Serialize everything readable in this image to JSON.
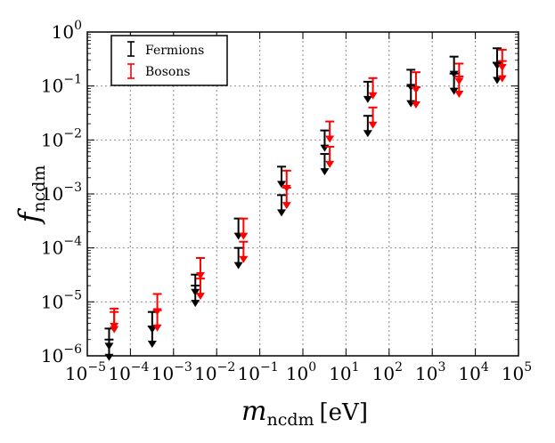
{
  "chart_data": {
    "type": "scatter",
    "title": "",
    "x_scale": "log",
    "y_scale": "log",
    "xlim": [
      1e-05,
      100000.0
    ],
    "ylim": [
      1e-06,
      1
    ],
    "grid": true,
    "xlabel": {
      "main": "m",
      "sub": "ncdm",
      "unit": "[eV]"
    },
    "ylabel": {
      "main": "f",
      "sub": "ncdm"
    },
    "x_tick_labels": [
      {
        "base": "10",
        "exp": "−5"
      },
      {
        "base": "10",
        "exp": "−4"
      },
      {
        "base": "10",
        "exp": "−3"
      },
      {
        "base": "10",
        "exp": "−2"
      },
      {
        "base": "10",
        "exp": "−1"
      },
      {
        "base": "10",
        "exp": "0"
      },
      {
        "base": "10",
        "exp": "1"
      },
      {
        "base": "10",
        "exp": "2"
      },
      {
        "base": "10",
        "exp": "3"
      },
      {
        "base": "10",
        "exp": "4"
      },
      {
        "base": "10",
        "exp": "5"
      }
    ],
    "y_tick_labels": [
      {
        "base": "10",
        "exp": "−6"
      },
      {
        "base": "10",
        "exp": "−5"
      },
      {
        "base": "10",
        "exp": "−4"
      },
      {
        "base": "10",
        "exp": "−3"
      },
      {
        "base": "10",
        "exp": "−2"
      },
      {
        "base": "10",
        "exp": "−1"
      },
      {
        "base": "10",
        "exp": "0"
      }
    ],
    "legend": {
      "position": "top-left",
      "entries": [
        "Fermions",
        "Bosons"
      ]
    },
    "series": [
      {
        "name": "Fermions",
        "color": "#000000",
        "marker": "upper-limit-arrow",
        "points": [
          {
            "x": 3.2e-05,
            "upper_limits": [
              3.2e-06,
              2e-06
            ]
          },
          {
            "x": 0.00032,
            "upper_limits": [
              6.5e-06,
              3.5e-06
            ]
          },
          {
            "x": 0.0032,
            "upper_limits": [
              3.2e-05,
              2e-05
            ]
          },
          {
            "x": 0.032,
            "upper_limits": [
              0.00035,
              0.0001
            ]
          },
          {
            "x": 0.32,
            "upper_limits": [
              0.0032,
              0.00095
            ]
          },
          {
            "x": 3.2,
            "upper_limits": [
              0.015,
              0.0055
            ]
          },
          {
            "x": 32,
            "upper_limits": [
              0.12,
              0.028
            ]
          },
          {
            "x": 320,
            "upper_limits": [
              0.2,
              0.1
            ]
          },
          {
            "x": 3200,
            "upper_limits": [
              0.35,
              0.17
            ]
          },
          {
            "x": 32000,
            "upper_limits": [
              0.5,
              0.27
            ]
          }
        ]
      },
      {
        "name": "Bosons",
        "color": "#ff0000",
        "marker": "upper-limit-arrow",
        "points": [
          {
            "x": 4.2e-05,
            "upper_limits": [
              7.5e-06,
              6.5e-06
            ]
          },
          {
            "x": 0.00042,
            "upper_limits": [
              1.4e-05,
              7e-06
            ]
          },
          {
            "x": 0.0042,
            "upper_limits": [
              6.5e-05,
              2.7e-05
            ]
          },
          {
            "x": 0.042,
            "upper_limits": [
              0.00035,
              0.00013
            ]
          },
          {
            "x": 0.42,
            "upper_limits": [
              0.0027,
              0.0013
            ]
          },
          {
            "x": 4.2,
            "upper_limits": [
              0.022,
              0.0075
            ]
          },
          {
            "x": 42,
            "upper_limits": [
              0.14,
              0.04
            ]
          },
          {
            "x": 420,
            "upper_limits": [
              0.18,
              0.095
            ]
          },
          {
            "x": 4200,
            "upper_limits": [
              0.26,
              0.15
            ]
          },
          {
            "x": 42000,
            "upper_limits": [
              0.47,
              0.29
            ]
          }
        ]
      }
    ]
  }
}
